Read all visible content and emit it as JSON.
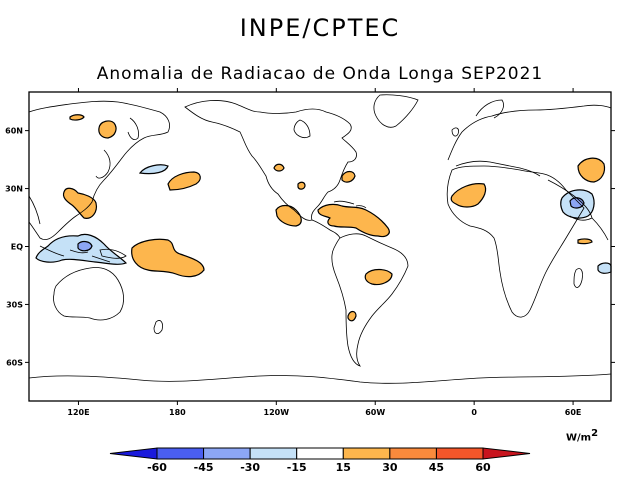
{
  "header": {
    "organization": "INPE/CPTEC",
    "title": "Anomalia de Radiacao de Onda Longa SEP2021"
  },
  "axes": {
    "lat_labels": [
      "60N",
      "30N",
      "EQ",
      "30S",
      "60S"
    ],
    "lat_values": [
      60,
      30,
      0,
      -30,
      -60
    ],
    "lon_labels": [
      "120E",
      "180",
      "120W",
      "60W",
      "0",
      "60E"
    ],
    "lon_values": [
      120,
      180,
      240,
      300,
      360,
      420
    ],
    "lon_range": [
      90,
      443
    ],
    "lat_range": [
      -80,
      80
    ]
  },
  "legend": {
    "units_label": "W/m",
    "units_exp": "2",
    "levels": [
      "-60",
      "-45",
      "-30",
      "-15",
      "15",
      "30",
      "45",
      "60"
    ],
    "colors": [
      "#1a1adc",
      "#4a5ef0",
      "#8ca6f5",
      "#c5e1f7",
      "#ffffff",
      "#fdb64d",
      "#fa8a3c",
      "#f4562a",
      "#c8141e"
    ]
  }
}
